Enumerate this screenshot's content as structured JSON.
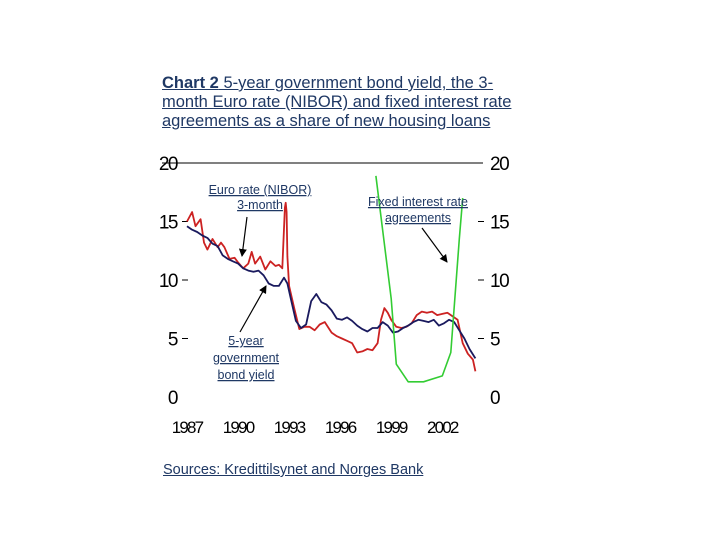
{
  "title": {
    "lead": "Chart 2",
    "rest": " 5-year government bond yield, the 3-month Euro rate (NIBOR) and fixed interest rate agreements as a share of new housing loans"
  },
  "source": "Sources: Kredittilsynet and Norges Bank",
  "colors": {
    "text": "#1f3864",
    "bond": "#1a1a5e",
    "nibor": "#cc2222",
    "fixed": "#33cc33"
  },
  "chart_data": {
    "type": "line",
    "title": "5-year government bond yield, the 3-month Euro rate (NIBOR) and fixed interest rate agreements as a share of new housing loans",
    "xlim": [
      1987,
      2004.1
    ],
    "ylim_left": [
      0,
      20
    ],
    "ylim_right": [
      0,
      20
    ],
    "x_ticks": [
      "1987",
      "1990",
      "1993",
      "1996",
      "1999",
      "2002"
    ],
    "y_ticks_left": [
      0,
      5,
      10,
      15,
      20
    ],
    "y_ticks_right": [
      0,
      5,
      10,
      15,
      20
    ],
    "annotations": [
      {
        "lines": [
          "Euro rate (NIBOR)",
          "3-month"
        ],
        "points_to": "Euro rate (NIBOR) 3-month"
      },
      {
        "lines": [
          "5-year",
          "government",
          "bond yield"
        ],
        "points_to": "5-year government bond yield"
      },
      {
        "lines": [
          "Fixed interest rate",
          "agreements"
        ],
        "points_to": "Fixed interest rate agreements"
      }
    ],
    "series": [
      {
        "name": "Euro rate (NIBOR) 3-month",
        "color": "#cc2222",
        "x": [
          1987.0,
          1987.3,
          1987.5,
          1987.8,
          1988.0,
          1988.2,
          1988.5,
          1988.8,
          1989.0,
          1989.2,
          1989.5,
          1989.8,
          1990.0,
          1990.3,
          1990.6,
          1990.8,
          1991.0,
          1991.3,
          1991.6,
          1991.9,
          1992.2,
          1992.4,
          1992.6,
          1992.75,
          1992.8,
          1992.85,
          1992.9,
          1993.0,
          1993.3,
          1993.6,
          1993.9,
          1994.2,
          1994.5,
          1994.8,
          1995.1,
          1995.5,
          1995.8,
          1996.1,
          1996.4,
          1996.7,
          1997.0,
          1997.3,
          1997.6,
          1997.9,
          1998.2,
          1998.4,
          1998.6,
          1998.8,
          1999.0,
          1999.3,
          1999.6,
          1999.9,
          2000.2,
          2000.5,
          2000.8,
          2001.1,
          2001.4,
          2001.7,
          2002.0,
          2002.3,
          2002.6,
          2002.9,
          2003.2,
          2003.5,
          2003.8,
          2003.95
        ],
        "y": [
          15.0,
          15.8,
          14.6,
          15.2,
          13.2,
          12.6,
          13.5,
          12.8,
          13.2,
          12.8,
          11.8,
          11.9,
          11.5,
          11.0,
          11.4,
          12.4,
          11.4,
          12.0,
          10.9,
          11.6,
          11.2,
          11.3,
          11.0,
          16.2,
          16.6,
          15.8,
          12.0,
          9.5,
          7.6,
          5.8,
          6.0,
          6.0,
          5.7,
          6.2,
          6.4,
          5.5,
          5.2,
          5.0,
          4.8,
          4.6,
          3.8,
          3.9,
          4.1,
          4.0,
          4.6,
          6.6,
          7.6,
          7.2,
          6.6,
          6.0,
          5.9,
          6.0,
          6.3,
          7.0,
          7.3,
          7.2,
          7.3,
          7.0,
          7.1,
          7.2,
          6.9,
          6.6,
          4.6,
          3.7,
          3.2,
          2.2
        ]
      },
      {
        "name": "5-year government bond yield",
        "color": "#1a1a5e",
        "x": [
          1987.0,
          1987.3,
          1987.6,
          1987.9,
          1988.2,
          1988.5,
          1988.8,
          1989.1,
          1989.4,
          1989.7,
          1990.0,
          1990.3,
          1990.6,
          1990.9,
          1991.2,
          1991.5,
          1991.8,
          1992.1,
          1992.4,
          1992.7,
          1992.9,
          1993.1,
          1993.4,
          1993.7,
          1994.0,
          1994.3,
          1994.6,
          1994.9,
          1995.2,
          1995.5,
          1995.8,
          1996.1,
          1996.4,
          1996.7,
          1997.0,
          1997.3,
          1997.6,
          1997.9,
          1998.2,
          1998.5,
          1998.8,
          1999.1,
          1999.4,
          1999.7,
          2000.0,
          2000.3,
          2000.6,
          2000.9,
          2001.2,
          2001.5,
          2001.8,
          2002.1,
          2002.4,
          2002.7,
          2003.0,
          2003.3,
          2003.6,
          2003.95
        ],
        "y": [
          14.6,
          14.3,
          14.1,
          13.8,
          13.6,
          13.1,
          12.9,
          12.1,
          11.8,
          11.6,
          11.4,
          11.0,
          10.8,
          10.7,
          10.8,
          10.4,
          9.7,
          9.5,
          9.5,
          10.2,
          9.7,
          8.4,
          6.5,
          5.9,
          6.2,
          8.2,
          8.8,
          8.1,
          7.9,
          7.4,
          6.7,
          6.6,
          6.8,
          6.5,
          6.1,
          5.8,
          5.6,
          5.9,
          5.9,
          6.4,
          6.1,
          5.5,
          5.6,
          5.9,
          6.1,
          6.4,
          6.6,
          6.5,
          6.4,
          6.6,
          6.1,
          6.3,
          6.6,
          6.4,
          5.7,
          5.0,
          4.1,
          3.3
        ]
      },
      {
        "name": "Fixed interest rate agreements",
        "color": "#33cc33",
        "x": [
          1998.1,
          1999.0,
          1999.3,
          2000.0,
          2000.5,
          2000.9,
          2002.0,
          2002.5,
          2003.0,
          2003.2
        ],
        "y": [
          18.9,
          8.4,
          2.8,
          1.3,
          1.3,
          1.3,
          1.8,
          3.8,
          13.5,
          17.0
        ]
      }
    ]
  }
}
